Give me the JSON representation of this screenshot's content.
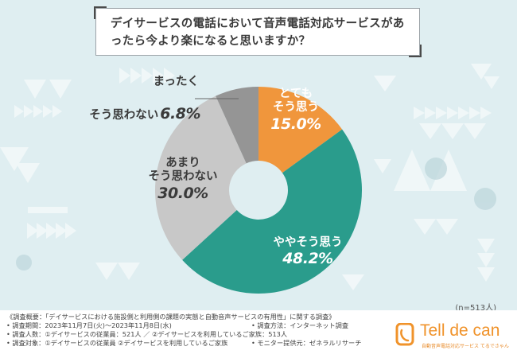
{
  "title": "デイサービスの電話において音声電話対応サービスがあったら今より楽になると思いますか？",
  "chart_data": {
    "type": "pie",
    "style": "donut",
    "slices": [
      {
        "name_lines": [
          "とても",
          "そう思う"
        ],
        "value": 15.0,
        "value_label": "15.0%",
        "color": "#f0963c",
        "text_color": "#ffffff"
      },
      {
        "name_lines": [
          "ややそう思う"
        ],
        "value": 48.2,
        "value_label": "48.2%",
        "color": "#2a9c8c",
        "text_color": "#ffffff"
      },
      {
        "name_lines": [
          "あまり",
          "そう思わない"
        ],
        "value": 30.0,
        "value_label": "30.0%",
        "color": "#c8c8c8",
        "text_color": "#3a3a3a"
      },
      {
        "name_lines": [
          "まったく",
          "そう思わない"
        ],
        "value": 6.8,
        "value_label": "6.8%",
        "color": "#959595",
        "text_color": "#3a3a3a"
      }
    ],
    "legend": "none"
  },
  "sample_size": "(n=513人)",
  "footer": {
    "overview": "《調査概要：「デイサービスにおける施設側と利用側の課題の実態と自動音声サービスの有用性」に関する調査》",
    "period": "• 調査期間：2023年11月7日(火)〜2023年11月8日(水)",
    "method": "• 調査方法：インターネット調査",
    "count": "• 調査人数：①デイサービスの従業員：521人 ／ ②デイサービスを利用しているご家族：513人",
    "target": "• 調査対象：①デイサービスの従業員 ②デイサービスを利用しているご家族",
    "provider": "• モニター提供元：ゼネラルリサーチ"
  },
  "logo": {
    "name": "Tell de can",
    "tagline": "自動音声電話対応サービス てるでさゃん",
    "color": "#f0932b"
  }
}
